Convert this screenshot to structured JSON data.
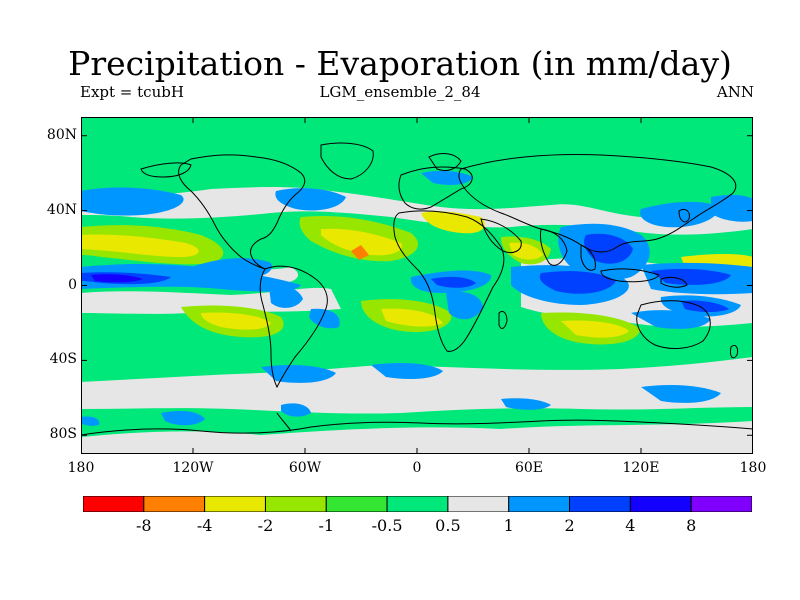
{
  "title": "Precipitation - Evaporation (in mm/day)",
  "experiment": "Expt = tcubH",
  "ensemble": "LGM_ensemble_2_84",
  "period": "ANN",
  "map": {
    "lat_labels": [
      "80N",
      "40N",
      "0",
      "40S",
      "80S"
    ],
    "lat_values": [
      80,
      40,
      0,
      -40,
      -80
    ],
    "lon_labels": [
      "180",
      "120W",
      "60W",
      "0",
      "60E",
      "120E",
      "180"
    ],
    "lon_values": [
      -180,
      -120,
      -60,
      0,
      60,
      120,
      180
    ],
    "lat_range": [
      -90,
      90
    ],
    "lon_range": [
      -180,
      180
    ],
    "background_color": "#00e87a"
  },
  "colorbar": {
    "labels": [
      "-8",
      "-4",
      "-2",
      "-1",
      "-0.5",
      "0.5",
      "1",
      "2",
      "4",
      "8"
    ],
    "colors": [
      "#ff0000",
      "#ff8000",
      "#e8e800",
      "#96e600",
      "#32e632",
      "#00e87a",
      "#e6e6e6",
      "#0096ff",
      "#0040ff",
      "#1400ff",
      "#8000ff"
    ]
  }
}
